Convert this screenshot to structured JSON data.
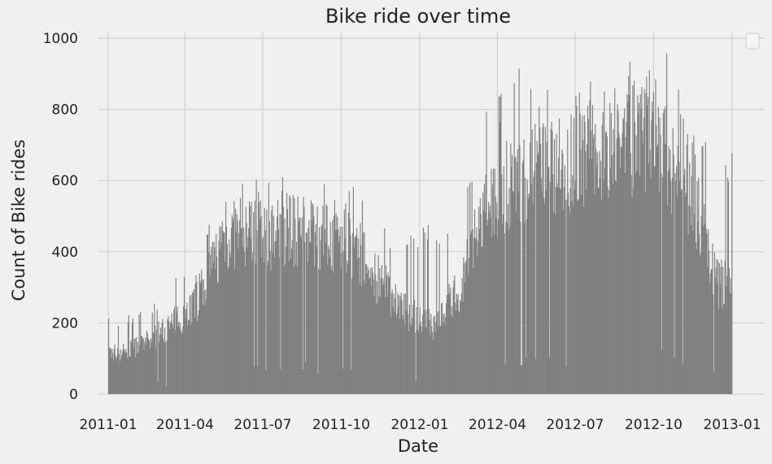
{
  "chart_data": {
    "type": "bar",
    "title": "Bike ride over time",
    "xlabel": "Date",
    "ylabel": "Count of Bike rides",
    "x_start": "2011-01-01",
    "x_end": "2013-01-01",
    "ylim": [
      0,
      1000
    ],
    "yticks": [
      0,
      200,
      400,
      600,
      800,
      1000
    ],
    "xticks": [
      "2011-01",
      "2011-04",
      "2011-07",
      "2011-10",
      "2012-01",
      "2012-04",
      "2012-07",
      "2012-10",
      "2013-01"
    ],
    "grid": true,
    "legend": "top-right, empty",
    "bar_color": "#808080",
    "series": [
      {
        "x_monthly": [
          "2011-01",
          "2011-02",
          "2011-03",
          "2011-04",
          "2011-05",
          "2011-06",
          "2011-07",
          "2011-08",
          "2011-09",
          "2011-10",
          "2011-11",
          "2011-12",
          "2012-01",
          "2012-02",
          "2012-03",
          "2012-04",
          "2012-05",
          "2012-06",
          "2012-07",
          "2012-08",
          "2012-09",
          "2012-10",
          "2012-11",
          "2012-12"
        ],
        "peak_values": [
          215,
          240,
          320,
          380,
          600,
          605,
          600,
          650,
          590,
          585,
          480,
          460,
          480,
          540,
          800,
          955,
          860,
          870,
          900,
          920,
          975,
          960,
          760,
          700
        ],
        "typical_values": [
          120,
          150,
          200,
          270,
          450,
          470,
          460,
          470,
          450,
          420,
          320,
          240,
          200,
          300,
          520,
          610,
          640,
          660,
          700,
          720,
          740,
          700,
          560,
          320
        ]
      }
    ]
  }
}
